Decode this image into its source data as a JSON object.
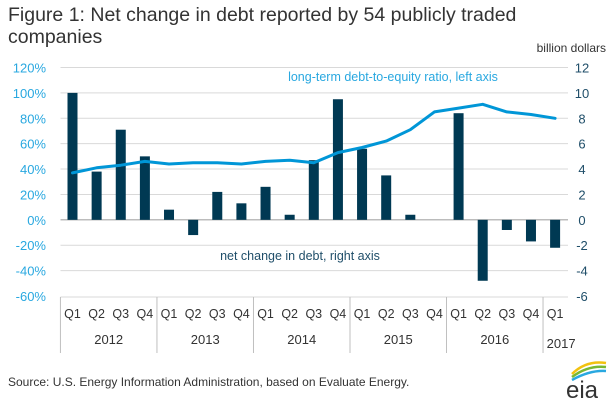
{
  "header": {
    "title": "Figure 1: Net change in debt reported by 54 publicly traded companies",
    "units_label": "billion dollars"
  },
  "footer": {
    "source": "Source: U.S. Energy Information Administration, based on  Evaluate Energy.",
    "logo_text": "eia"
  },
  "colors": {
    "bar": "#003953",
    "line": "#0096d7",
    "left_axis": "#29a8e0",
    "right_axis": "#1f4e69",
    "grid": "#d9d9d9",
    "text": "#333333"
  },
  "chart_data": {
    "type": "bar+line",
    "title": "Figure 1: Net change in debt reported by 54 publicly traded companies",
    "categories": [
      "Q1",
      "Q2",
      "Q3",
      "Q4",
      "Q1",
      "Q2",
      "Q3",
      "Q4",
      "Q1",
      "Q2",
      "Q3",
      "Q4",
      "Q1",
      "Q2",
      "Q3",
      "Q4",
      "Q1",
      "Q2",
      "Q3",
      "Q4",
      "Q1"
    ],
    "years": [
      {
        "label": "2012",
        "count": 4
      },
      {
        "label": "2013",
        "count": 4
      },
      {
        "label": "2014",
        "count": 4
      },
      {
        "label": "2015",
        "count": 4
      },
      {
        "label": "2016",
        "count": 4
      },
      {
        "label": "2017",
        "count": 1
      }
    ],
    "series": [
      {
        "name": "net change in debt, right axis",
        "type": "bar",
        "axis": "right",
        "unit": "billion dollars",
        "values": [
          10.0,
          3.8,
          7.1,
          5.0,
          0.8,
          -1.2,
          2.2,
          1.3,
          2.6,
          0.4,
          4.7,
          9.5,
          5.6,
          3.5,
          0.4,
          0.0,
          8.4,
          -4.8,
          -0.8,
          -1.7,
          -2.2
        ]
      },
      {
        "name": "long-term debt-to-equity ratio, left axis",
        "type": "line",
        "axis": "left",
        "unit": "percent",
        "values": [
          37,
          41,
          43,
          46,
          44,
          45,
          45,
          44,
          46,
          47,
          45,
          53,
          57,
          62,
          71,
          85,
          88,
          91,
          85,
          83,
          80
        ]
      }
    ],
    "left_axis": {
      "ylim": [
        -60,
        120
      ],
      "ticks": [
        "120%",
        "100%",
        "80%",
        "60%",
        "40%",
        "20%",
        "0%",
        "-20%",
        "-40%",
        "-60%"
      ]
    },
    "right_axis": {
      "label": "billion dollars",
      "ylim": [
        -6,
        12
      ],
      "ticks": [
        "12",
        "10",
        "8",
        "6",
        "4",
        "2",
        "0",
        "-2",
        "-4",
        "-6"
      ]
    },
    "grid": true,
    "legend": [
      {
        "text": "long-term debt-to-equity ratio, left axis",
        "placement": "top-center"
      },
      {
        "text": "net change in debt, right axis",
        "placement": "bottom-center"
      }
    ]
  }
}
